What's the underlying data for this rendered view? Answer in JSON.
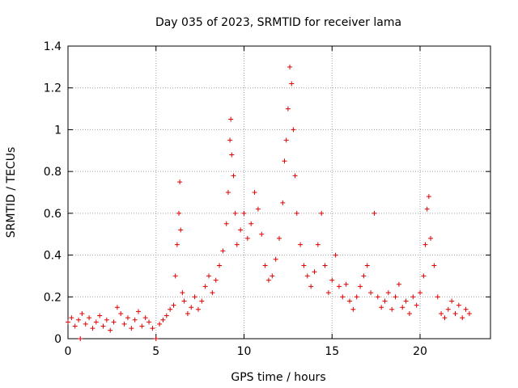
{
  "chart_data": {
    "type": "scatter",
    "title": "Day 035 of 2023, SRMTID for receiver lama",
    "xlabel": "GPS time / hours",
    "ylabel": "SRMTID / TECUs",
    "xlim": [
      0,
      24
    ],
    "ylim": [
      0,
      1.4
    ],
    "xticks": [
      0,
      5,
      10,
      15,
      20
    ],
    "xtick_labels": [
      "0",
      "5",
      "10",
      "15",
      "20"
    ],
    "yticks": [
      0,
      0.2,
      0.4,
      0.6,
      0.8,
      1.0,
      1.2,
      1.4
    ],
    "ytick_labels": [
      "0",
      "0.2",
      "0.4",
      "0.6",
      "0.8",
      "1",
      "1.2",
      "1.4"
    ],
    "grid": true,
    "marker": "+",
    "color": "#e00000",
    "series": [
      {
        "name": "SRMTID",
        "points": [
          [
            0.0,
            0.08
          ],
          [
            0.2,
            0.1
          ],
          [
            0.4,
            0.06
          ],
          [
            0.6,
            0.09
          ],
          [
            0.8,
            0.12
          ],
          [
            0.7,
            0.0
          ],
          [
            1.0,
            0.07
          ],
          [
            1.2,
            0.1
          ],
          [
            1.4,
            0.05
          ],
          [
            1.6,
            0.08
          ],
          [
            1.8,
            0.11
          ],
          [
            2.0,
            0.06
          ],
          [
            2.2,
            0.09
          ],
          [
            2.4,
            0.04
          ],
          [
            2.6,
            0.08
          ],
          [
            2.8,
            0.15
          ],
          [
            3.0,
            0.12
          ],
          [
            3.2,
            0.07
          ],
          [
            3.4,
            0.1
          ],
          [
            3.6,
            0.05
          ],
          [
            3.8,
            0.09
          ],
          [
            4.0,
            0.13
          ],
          [
            4.2,
            0.06
          ],
          [
            4.4,
            0.1
          ],
          [
            4.6,
            0.08
          ],
          [
            4.8,
            0.05
          ],
          [
            5.0,
            0.0
          ],
          [
            5.2,
            0.07
          ],
          [
            5.4,
            0.09
          ],
          [
            5.6,
            0.11
          ],
          [
            5.8,
            0.14
          ],
          [
            6.0,
            0.16
          ],
          [
            6.1,
            0.3
          ],
          [
            6.2,
            0.45
          ],
          [
            6.3,
            0.6
          ],
          [
            6.35,
            0.75
          ],
          [
            6.4,
            0.52
          ],
          [
            6.5,
            0.22
          ],
          [
            6.6,
            0.18
          ],
          [
            6.8,
            0.12
          ],
          [
            7.0,
            0.15
          ],
          [
            7.2,
            0.2
          ],
          [
            7.4,
            0.14
          ],
          [
            7.6,
            0.18
          ],
          [
            7.8,
            0.25
          ],
          [
            8.0,
            0.3
          ],
          [
            8.2,
            0.22
          ],
          [
            8.4,
            0.28
          ],
          [
            8.6,
            0.35
          ],
          [
            8.8,
            0.42
          ],
          [
            9.0,
            0.55
          ],
          [
            9.1,
            0.7
          ],
          [
            9.2,
            0.95
          ],
          [
            9.25,
            1.05
          ],
          [
            9.3,
            0.88
          ],
          [
            9.4,
            0.78
          ],
          [
            9.5,
            0.6
          ],
          [
            9.6,
            0.45
          ],
          [
            9.8,
            0.52
          ],
          [
            10.0,
            0.6
          ],
          [
            10.2,
            0.48
          ],
          [
            10.4,
            0.55
          ],
          [
            10.6,
            0.7
          ],
          [
            10.8,
            0.62
          ],
          [
            11.0,
            0.5
          ],
          [
            11.2,
            0.35
          ],
          [
            11.4,
            0.28
          ],
          [
            11.6,
            0.3
          ],
          [
            11.8,
            0.38
          ],
          [
            12.0,
            0.48
          ],
          [
            12.2,
            0.65
          ],
          [
            12.3,
            0.85
          ],
          [
            12.4,
            0.95
          ],
          [
            12.5,
            1.1
          ],
          [
            12.6,
            1.3
          ],
          [
            12.7,
            1.22
          ],
          [
            12.8,
            1.0
          ],
          [
            12.9,
            0.78
          ],
          [
            13.0,
            0.6
          ],
          [
            13.2,
            0.45
          ],
          [
            13.4,
            0.35
          ],
          [
            13.6,
            0.3
          ],
          [
            13.8,
            0.25
          ],
          [
            14.0,
            0.32
          ],
          [
            14.2,
            0.45
          ],
          [
            14.4,
            0.6
          ],
          [
            14.6,
            0.35
          ],
          [
            14.8,
            0.22
          ],
          [
            15.0,
            0.28
          ],
          [
            15.2,
            0.4
          ],
          [
            15.4,
            0.25
          ],
          [
            15.6,
            0.2
          ],
          [
            15.8,
            0.26
          ],
          [
            16.0,
            0.18
          ],
          [
            16.2,
            0.14
          ],
          [
            16.4,
            0.2
          ],
          [
            16.6,
            0.25
          ],
          [
            16.8,
            0.3
          ],
          [
            17.0,
            0.35
          ],
          [
            17.2,
            0.22
          ],
          [
            17.4,
            0.6
          ],
          [
            17.6,
            0.2
          ],
          [
            17.8,
            0.15
          ],
          [
            18.0,
            0.18
          ],
          [
            18.2,
            0.22
          ],
          [
            18.4,
            0.14
          ],
          [
            18.6,
            0.2
          ],
          [
            18.8,
            0.26
          ],
          [
            19.0,
            0.15
          ],
          [
            19.2,
            0.18
          ],
          [
            19.4,
            0.12
          ],
          [
            19.6,
            0.2
          ],
          [
            19.8,
            0.16
          ],
          [
            20.0,
            0.22
          ],
          [
            20.2,
            0.3
          ],
          [
            20.3,
            0.45
          ],
          [
            20.4,
            0.62
          ],
          [
            20.5,
            0.68
          ],
          [
            20.6,
            0.48
          ],
          [
            20.8,
            0.35
          ],
          [
            21.0,
            0.2
          ],
          [
            21.2,
            0.12
          ],
          [
            21.4,
            0.1
          ],
          [
            21.6,
            0.14
          ],
          [
            21.8,
            0.18
          ],
          [
            22.0,
            0.12
          ],
          [
            22.2,
            0.16
          ],
          [
            22.4,
            0.1
          ],
          [
            22.6,
            0.14
          ],
          [
            22.8,
            0.12
          ]
        ]
      }
    ]
  }
}
